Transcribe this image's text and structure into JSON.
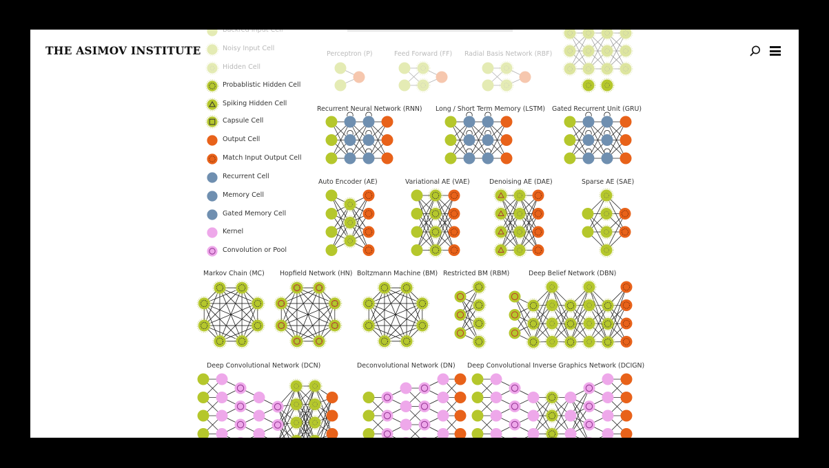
{
  "header": {
    "brand": "THE ASIMOV INSTITUTE",
    "search_icon": "search-icon",
    "menu_icon": "hamburger-menu-icon"
  },
  "colors": {
    "input": "#b5c72c",
    "hidden": "#b5c72c",
    "output": "#e8621a",
    "recurrent": "#6f8fb0",
    "kernel": "#eea8ea",
    "background_frame": "#ffffff",
    "background_outer": "#000000"
  },
  "legend": {
    "items": [
      {
        "label": "Backfed Input Cell",
        "type": "input",
        "faded": true
      },
      {
        "label": "Noisy Input Cell",
        "type": "noisy",
        "faded": true
      },
      {
        "label": "Hidden Cell",
        "type": "hidden",
        "faded": true
      },
      {
        "label": "Probablistic Hidden Cell",
        "type": "prob"
      },
      {
        "label": "Spiking Hidden Cell",
        "type": "spike"
      },
      {
        "label": "Capsule Cell",
        "type": "capsule"
      },
      {
        "label": "Output Cell",
        "type": "output"
      },
      {
        "label": "Match Input Output Cell",
        "type": "match"
      },
      {
        "label": "Recurrent Cell",
        "type": "recurrent"
      },
      {
        "label": "Memory Cell",
        "type": "memory"
      },
      {
        "label": "Gated Memory Cell",
        "type": "gated"
      },
      {
        "label": "Kernel",
        "type": "kernel"
      },
      {
        "label": "Convolution or Pool",
        "type": "conv"
      }
    ]
  },
  "networks": [
    {
      "name": "Perceptron (P)",
      "faded": true
    },
    {
      "name": "Feed Forward (FF)",
      "faded": true
    },
    {
      "name": "Radial Basis Network (RBF)",
      "faded": true
    },
    {
      "name": "Recurrent Neural Network (RNN)"
    },
    {
      "name": "Long / Short Term Memory (LSTM)"
    },
    {
      "name": "Gated Recurrent Unit (GRU)"
    },
    {
      "name": "Auto Encoder (AE)"
    },
    {
      "name": "Variational AE (VAE)"
    },
    {
      "name": "Denoising AE (DAE)"
    },
    {
      "name": "Sparse AE (SAE)"
    },
    {
      "name": "Markov Chain (MC)"
    },
    {
      "name": "Hopfield Network (HN)"
    },
    {
      "name": "Boltzmann Machine (BM)"
    },
    {
      "name": "Restricted BM (RBM)"
    },
    {
      "name": "Deep Belief Network (DBN)"
    },
    {
      "name": "Deep Convolutional Network (DCN)"
    },
    {
      "name": "Deconvolutional Network (DN)"
    },
    {
      "name": "Deep Convolutional Inverse Graphics Network (DCIGN)"
    }
  ]
}
